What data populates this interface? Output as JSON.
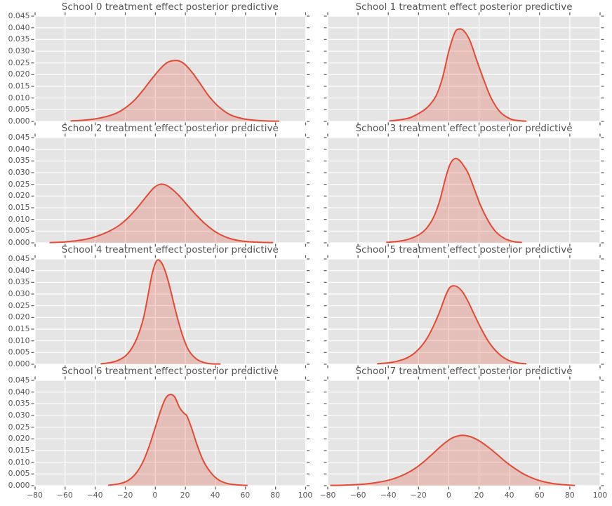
{
  "figure": {
    "background": "#FFFFFF",
    "plot_background": "#E5E5E5",
    "grid_color": "#FFFFFF",
    "text_color": "#555555",
    "tick_color": "#555555",
    "line_color": "#E24A33",
    "fill_color": "rgba(226,74,51,0.25)"
  },
  "chart_data": {
    "type": "area",
    "subtype": "kde-density",
    "layout": {
      "rows": 4,
      "cols": 2,
      "shared_x": true,
      "shared_y": true,
      "grid": true,
      "legend": false
    },
    "xlim": [
      -80,
      100
    ],
    "ylim": [
      0,
      0.045
    ],
    "xticks": [
      -80,
      -60,
      -40,
      -20,
      0,
      20,
      40,
      60,
      80,
      100
    ],
    "xtick_labels": [
      "−80",
      "−60",
      "−40",
      "−20",
      "0",
      "20",
      "40",
      "60",
      "80",
      "100"
    ],
    "yticks": [
      0.0,
      0.005,
      0.01,
      0.015,
      0.02,
      0.025,
      0.03,
      0.035,
      0.04,
      0.045
    ],
    "ytick_labels": [
      "0.000",
      "0.005",
      "0.010",
      "0.015",
      "0.020",
      "0.025",
      "0.030",
      "0.035",
      "0.040",
      "0.045"
    ],
    "subplots": [
      {
        "title": "School 0 treatment effect posterior predictive",
        "peak": {
          "x": 12,
          "density": 0.026
        },
        "x": [
          -56,
          -48,
          -40,
          -33,
          -26,
          -20,
          -14,
          -8,
          -2,
          4,
          8,
          12,
          16,
          20,
          25,
          30,
          36,
          43,
          50,
          58,
          66,
          74,
          82
        ],
        "y": [
          0.0002,
          0.0005,
          0.0011,
          0.002,
          0.0035,
          0.0058,
          0.009,
          0.0135,
          0.0185,
          0.023,
          0.0252,
          0.026,
          0.0258,
          0.0242,
          0.0205,
          0.016,
          0.0105,
          0.0058,
          0.0028,
          0.0012,
          0.0005,
          0.0002,
          0.0001
        ]
      },
      {
        "title": "School 1 treatment effect posterior predictive",
        "peak": {
          "x": 6,
          "density": 0.0395
        },
        "x": [
          -39,
          -32,
          -26,
          -21,
          -16,
          -12,
          -8,
          -4,
          0,
          4,
          7,
          10,
          14,
          18,
          23,
          28,
          34,
          41,
          47,
          51
        ],
        "y": [
          0.0002,
          0.0007,
          0.0015,
          0.003,
          0.005,
          0.0075,
          0.0115,
          0.019,
          0.03,
          0.038,
          0.0395,
          0.0387,
          0.0345,
          0.027,
          0.018,
          0.01,
          0.004,
          0.001,
          0.0003,
          0.0001
        ]
      },
      {
        "title": "School 2 treatment effect posterior predictive",
        "peak": {
          "x": 2,
          "density": 0.025
        },
        "x": [
          -70,
          -62,
          -55,
          -48,
          -42,
          -36,
          -30,
          -24,
          -18,
          -12,
          -6,
          -1,
          3,
          7,
          11,
          16,
          21,
          27,
          33,
          40,
          48,
          56,
          64,
          71,
          78
        ],
        "y": [
          0.0001,
          0.0003,
          0.0007,
          0.0013,
          0.0022,
          0.0035,
          0.0052,
          0.0075,
          0.0108,
          0.015,
          0.0198,
          0.0235,
          0.025,
          0.0247,
          0.023,
          0.02,
          0.0163,
          0.012,
          0.0082,
          0.0047,
          0.0022,
          0.0009,
          0.0004,
          0.0002,
          0.0001
        ]
      },
      {
        "title": "School 3 treatment effect posterior predictive",
        "peak": {
          "x": 4,
          "density": 0.036
        },
        "x": [
          -41,
          -34,
          -28,
          -23,
          -18,
          -14,
          -10,
          -6,
          -2,
          1,
          4,
          7,
          10,
          13,
          17,
          21,
          26,
          31,
          37,
          43,
          48
        ],
        "y": [
          0.0002,
          0.0006,
          0.0013,
          0.0024,
          0.0042,
          0.0068,
          0.011,
          0.018,
          0.028,
          0.0338,
          0.036,
          0.0353,
          0.0328,
          0.0295,
          0.0228,
          0.016,
          0.0095,
          0.0048,
          0.0018,
          0.0005,
          0.0002
        ]
      },
      {
        "title": "School 4 treatment effect posterior predictive",
        "peak": {
          "x": 1,
          "density": 0.0445
        },
        "x": [
          -36,
          -30,
          -25,
          -20,
          -16,
          -12,
          -8,
          -5,
          -2,
          1,
          4,
          7,
          10,
          14,
          18,
          22,
          27,
          32,
          37,
          43
        ],
        "y": [
          0.0002,
          0.0007,
          0.0016,
          0.0035,
          0.0065,
          0.0115,
          0.0195,
          0.029,
          0.039,
          0.0443,
          0.0435,
          0.039,
          0.032,
          0.0215,
          0.0125,
          0.0062,
          0.0024,
          0.0008,
          0.0002,
          0.0001
        ]
      },
      {
        "title": "School 5 treatment effect posterior predictive",
        "peak": {
          "x": 1,
          "density": 0.0335
        },
        "x": [
          -47,
          -40,
          -34,
          -28,
          -23,
          -18,
          -14,
          -10,
          -6,
          -2,
          1,
          5,
          9,
          13,
          17,
          22,
          27,
          33,
          39,
          45,
          51
        ],
        "y": [
          0.0002,
          0.0006,
          0.0013,
          0.0026,
          0.0046,
          0.0078,
          0.0115,
          0.0165,
          0.0225,
          0.0295,
          0.033,
          0.0333,
          0.031,
          0.0265,
          0.021,
          0.0145,
          0.009,
          0.0045,
          0.0018,
          0.0006,
          0.0002
        ]
      },
      {
        "title": "School 6 treatment effect posterior predictive",
        "peak": {
          "x": 10,
          "density": 0.039
        },
        "x": [
          -31,
          -25,
          -20,
          -16,
          -12,
          -8,
          -4,
          0,
          4,
          7,
          10,
          13,
          16,
          19,
          21,
          24,
          28,
          32,
          37,
          42,
          48,
          55,
          61
        ],
        "y": [
          0.0002,
          0.0007,
          0.0016,
          0.0032,
          0.006,
          0.0105,
          0.017,
          0.025,
          0.033,
          0.0375,
          0.039,
          0.0378,
          0.0335,
          0.031,
          0.0298,
          0.0248,
          0.017,
          0.0105,
          0.0055,
          0.0025,
          0.0009,
          0.0003,
          0.0001
        ]
      },
      {
        "title": "School 7 treatment effect posterior predictive",
        "peak": {
          "x": 8,
          "density": 0.0215
        },
        "x": [
          -78,
          -70,
          -62,
          -54,
          -47,
          -40,
          -34,
          -28,
          -22,
          -16,
          -10,
          -4,
          2,
          8,
          14,
          20,
          26,
          32,
          38,
          44,
          50,
          57,
          64,
          71,
          78,
          83
        ],
        "y": [
          0.0001,
          0.0002,
          0.0004,
          0.0008,
          0.0014,
          0.0023,
          0.0035,
          0.0052,
          0.0075,
          0.0105,
          0.014,
          0.0175,
          0.0203,
          0.0215,
          0.021,
          0.0192,
          0.0165,
          0.0133,
          0.01,
          0.0072,
          0.0048,
          0.0028,
          0.0015,
          0.0007,
          0.0003,
          0.0001
        ]
      }
    ]
  }
}
